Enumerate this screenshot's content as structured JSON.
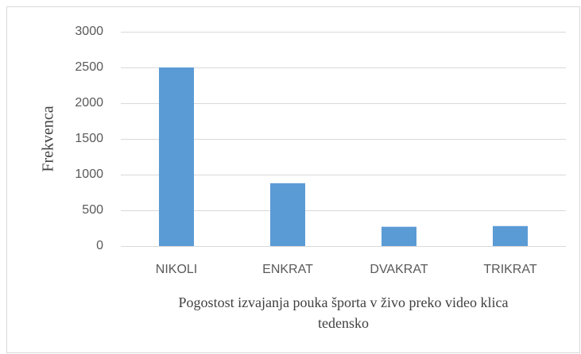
{
  "chart_data": {
    "type": "bar",
    "categories": [
      "NIKOLI",
      "ENKRAT",
      "DVAKRAT",
      "TRIKRAT"
    ],
    "values": [
      2500,
      880,
      270,
      280
    ],
    "color": "#5b9bd5",
    "ylabel": "Frekvenca",
    "xlabel": "Pogostost izvajanja pouka športa v živo preko video klica tedensko",
    "ylim": [
      0,
      3000
    ],
    "yticks": [
      0,
      500,
      1000,
      1500,
      2000,
      2500,
      3000
    ],
    "grid": true
  }
}
